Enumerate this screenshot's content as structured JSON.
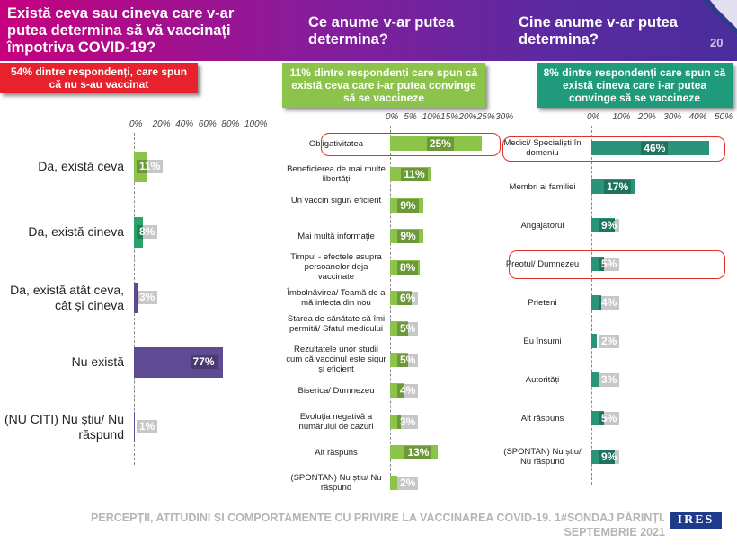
{
  "header": {
    "title1": "Există ceva sau cineva care v-ar putea determina să vă vaccinați împotriva COVID-19?",
    "title2": "Ce anume v-ar putea determina?",
    "title3": "Cine anume v-ar putea determina?",
    "page_number": "20"
  },
  "banners": {
    "b1": "54% dintre respondenți, care spun că nu s-au vaccinat",
    "b2": "11% dintre respondenți care spun că există ceva care i-ar putea convinge să se vaccineze",
    "b3": "8% dintre respondenți care spun că există cineva care i-ar putea convinge să se vaccineze"
  },
  "colors": {
    "purple": "#5e4b93",
    "green": "#8cc34a",
    "teal": "#2a9479",
    "highlight": "#e0322a"
  },
  "footer": {
    "line1": "PERCEPȚII, ATITUDINI ȘI COMPORTAMENTE CU PRIVIRE LA VACCINAREA COVID-19. 1#SONDAJ PĂRINȚI.",
    "line2": "SEPTEMBRIE 2021",
    "logo": "IRES"
  },
  "chart_data": [
    {
      "type": "bar",
      "orientation": "horizontal",
      "ticks": [
        "0%",
        "20%",
        "40%",
        "60%",
        "80%",
        "100%"
      ],
      "xlim": [
        0,
        100
      ],
      "categories": [
        "Da, există ceva",
        "Da, există cineva",
        "Da, există atât ceva, cât și cineva",
        "Nu există",
        "(NU CITI) Nu știu/ Nu răspund"
      ],
      "values": [
        11,
        8,
        3,
        77,
        1
      ],
      "labels": [
        "11%",
        "8%",
        "3%",
        "77%",
        "1%"
      ],
      "colors": [
        "#8cc34a",
        "#2aa36b",
        "#5e4b93",
        "#5e4b93",
        "#5e4b93"
      ]
    },
    {
      "type": "bar",
      "orientation": "horizontal",
      "ticks": [
        "0%",
        "5%",
        "10%",
        "15%",
        "20%",
        "25%",
        "30%"
      ],
      "xlim": [
        0,
        30
      ],
      "categories": [
        "Obligativitatea",
        "Beneficierea de mai multe libertăți",
        "Un vaccin sigur/ eficient",
        "Mai multă informație",
        "Timpul - efectele asupra persoanelor deja vaccinate",
        "Îmbolnăvirea/ Teamă de a mă infecta din nou",
        "Starea de sănătate să îmi permită/ Sfatul medicului",
        "Rezultatele unor studii cum că vaccinul este sigur și eficient",
        "Biserica/ Dumnezeu",
        "Evoluția negativă a numărului de cazuri",
        "Alt răspuns",
        "(SPONTAN) Nu știu/ Nu răspund"
      ],
      "values": [
        25,
        11,
        9,
        9,
        8,
        6,
        5,
        5,
        4,
        3,
        13,
        2
      ],
      "labels": [
        "25%",
        "11%",
        "9%",
        "9%",
        "8%",
        "6%",
        "5%",
        "5%",
        "4%",
        "3%",
        "13%",
        "2%"
      ],
      "highlight": "Obligativitatea"
    },
    {
      "type": "bar",
      "orientation": "horizontal",
      "ticks": [
        "0%",
        "10%",
        "20%",
        "30%",
        "40%",
        "50%"
      ],
      "xlim": [
        0,
        50
      ],
      "categories": [
        "Medici/ Specialiști în domeniu",
        "Membri ai familiei",
        "Angajatorul",
        "Preotul/ Dumnezeu",
        "Prieteni",
        "Eu însumi",
        "Autorități",
        "Alt răspuns",
        "(SPONTAN) Nu știu/ Nu răspund"
      ],
      "values": [
        46,
        17,
        9,
        5,
        4,
        2,
        3,
        5,
        9
      ],
      "labels": [
        "46%",
        "17%",
        "9%",
        "5%",
        "4%",
        "2%",
        "3%",
        "5%",
        "9%"
      ],
      "highlight": [
        "Medici/ Specialiști în domeniu",
        "Preotul/ Dumnezeu"
      ]
    }
  ]
}
